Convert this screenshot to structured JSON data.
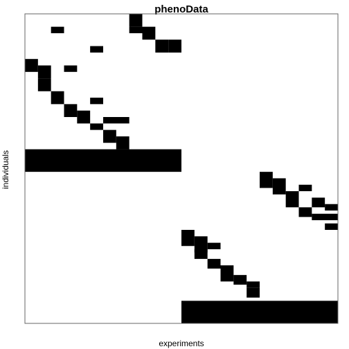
{
  "chart_data": {
    "type": "heatmap",
    "title": "phenoData",
    "xlabel": "experiments",
    "ylabel": "individuals",
    "n_columns": 24,
    "n_rows": 24,
    "colors": {
      "on": "#000000",
      "off": "#ffffff",
      "frame": "#666666"
    },
    "cells": [
      [
        8,
        0,
        1,
        1
      ],
      [
        2,
        1,
        1,
        0.5
      ],
      [
        8,
        1,
        1,
        0.5
      ],
      [
        9,
        1,
        1,
        1
      ],
      [
        10,
        2,
        1,
        1
      ],
      [
        11,
        2,
        1,
        1
      ],
      [
        5,
        2.5,
        1,
        0.5
      ],
      [
        0,
        3.5,
        1,
        1
      ],
      [
        1,
        4,
        1,
        1
      ],
      [
        3,
        4,
        1,
        0.5
      ],
      [
        1,
        5,
        1,
        1
      ],
      [
        2,
        6,
        1,
        1
      ],
      [
        5,
        6.5,
        1,
        0.5
      ],
      [
        3,
        7,
        1,
        1
      ],
      [
        4,
        7.5,
        1,
        1
      ],
      [
        6,
        8,
        2,
        0.5
      ],
      [
        5,
        8.5,
        1,
        0.5
      ],
      [
        6,
        9,
        1,
        1
      ],
      [
        7,
        9.5,
        1,
        1
      ],
      [
        0,
        10.5,
        12,
        1.75
      ],
      [
        18,
        12.25,
        1,
        1.25
      ],
      [
        19,
        12.75,
        1,
        1.25
      ],
      [
        21,
        13.25,
        1,
        0.5
      ],
      [
        20,
        13.75,
        1,
        1.25
      ],
      [
        22,
        14.25,
        1,
        0.75
      ],
      [
        23,
        14.75,
        1,
        0.5
      ],
      [
        21,
        15,
        1,
        0.75
      ],
      [
        22,
        15.5,
        2,
        0.5
      ],
      [
        23,
        16.25,
        1,
        0.5
      ],
      [
        12,
        16.75,
        1,
        1.25
      ],
      [
        13,
        17.25,
        1,
        1.25
      ],
      [
        14,
        17.75,
        1,
        0.5
      ],
      [
        13,
        18.25,
        1,
        0.75
      ],
      [
        14,
        19,
        1,
        0.75
      ],
      [
        15,
        19.5,
        1,
        1.25
      ],
      [
        16,
        20.25,
        1,
        0.75
      ],
      [
        17,
        20.75,
        1,
        0.5
      ],
      [
        17,
        21.25,
        1,
        0.75
      ],
      [
        12,
        22.25,
        12,
        1.75
      ]
    ]
  }
}
